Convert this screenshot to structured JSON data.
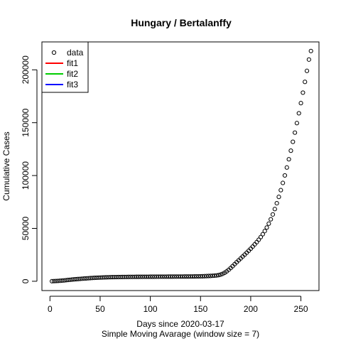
{
  "chart_data": {
    "type": "scatter",
    "title": "Hungary / Bertalanffy",
    "xlabel": "Days since 2020-03-17",
    "xlabel_sub": "Simple Moving Avarage (window size = 7)",
    "ylabel": "Cumulative Cases",
    "xlim": [
      -8,
      268
    ],
    "ylim": [
      -8800,
      226400
    ],
    "x_ticks": [
      0,
      50,
      100,
      150,
      200,
      250
    ],
    "y_ticks": [
      0,
      50000,
      100000,
      150000,
      200000
    ],
    "grid": false,
    "legend_position": "top-left",
    "legend": [
      {
        "label": "data",
        "kind": "point",
        "color": "#000000"
      },
      {
        "label": "fit1",
        "kind": "line",
        "color": "#ff0000"
      },
      {
        "label": "fit2",
        "kind": "line",
        "color": "#00cd00"
      },
      {
        "label": "fit3",
        "kind": "line",
        "color": "#0000ff"
      }
    ],
    "series": [
      {
        "name": "data",
        "color": "#000000",
        "marker": "open-circle",
        "x": [
          2,
          4,
          6,
          8,
          10,
          12,
          14,
          16,
          18,
          20,
          22,
          24,
          26,
          28,
          30,
          32,
          34,
          36,
          38,
          40,
          42,
          44,
          46,
          48,
          50,
          52,
          54,
          56,
          58,
          60,
          62,
          64,
          66,
          68,
          70,
          72,
          74,
          76,
          78,
          80,
          82,
          84,
          86,
          88,
          90,
          92,
          94,
          96,
          98,
          100,
          102,
          104,
          106,
          108,
          110,
          112,
          114,
          116,
          118,
          120,
          122,
          124,
          126,
          128,
          130,
          132,
          134,
          136,
          138,
          140,
          142,
          144,
          146,
          148,
          150,
          152,
          154,
          156,
          158,
          160,
          162,
          164,
          166,
          168,
          170,
          172,
          174,
          176,
          178,
          180,
          182,
          184,
          186,
          188,
          190,
          192,
          194,
          196,
          198,
          200,
          202,
          204,
          206,
          208,
          210,
          212,
          214,
          216,
          218,
          220,
          222,
          224,
          226,
          228,
          230,
          232,
          234,
          236,
          238,
          240,
          242,
          244,
          246,
          248,
          250,
          252,
          254,
          256,
          258,
          260
        ],
        "y": [
          60,
          130,
          220,
          330,
          460,
          620,
          800,
          1000,
          1200,
          1400,
          1600,
          1780,
          1950,
          2100,
          2250,
          2400,
          2550,
          2700,
          2850,
          2980,
          3100,
          3220,
          3330,
          3420,
          3500,
          3570,
          3640,
          3700,
          3760,
          3810,
          3860,
          3900,
          3940,
          3980,
          4010,
          4040,
          4070,
          4100,
          4120,
          4140,
          4160,
          4180,
          4200,
          4220,
          4230,
          4240,
          4250,
          4260,
          4270,
          4280,
          4290,
          4300,
          4310,
          4320,
          4330,
          4340,
          4350,
          4360,
          4370,
          4380,
          4390,
          4400,
          4410,
          4420,
          4430,
          4440,
          4450,
          4460,
          4470,
          4490,
          4510,
          4540,
          4570,
          4610,
          4660,
          4720,
          4790,
          4870,
          4960,
          5060,
          5180,
          5320,
          5500,
          5800,
          6300,
          7000,
          8000,
          9300,
          10800,
          12500,
          14300,
          16200,
          18000,
          19800,
          21600,
          23400,
          25200,
          27000,
          28900,
          30800,
          32800,
          34900,
          37000,
          39300,
          41800,
          44500,
          47500,
          50800,
          54500,
          58600,
          63200,
          68300,
          73800,
          79800,
          86200,
          93000,
          100100,
          107600,
          115400,
          123500,
          131900,
          140600,
          149600,
          158900,
          168500,
          178400,
          188600,
          199000,
          209700,
          217800
        ]
      }
    ]
  }
}
